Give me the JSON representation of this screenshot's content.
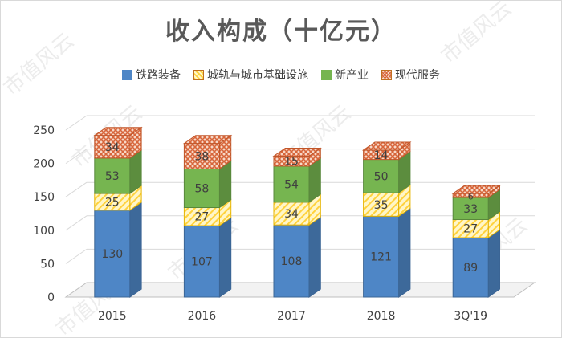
{
  "chart_data": {
    "type": "bar",
    "stacked": true,
    "three_d": true,
    "title": "收入构成（十亿元）",
    "categories": [
      "2015",
      "2016",
      "2017",
      "2018",
      "3Q'19"
    ],
    "series": [
      {
        "name": "铁路装备",
        "values": [
          130,
          107,
          108,
          121,
          89
        ],
        "color": "#4e86c6",
        "pattern": "solid"
      },
      {
        "name": "城轨与城市基础设施",
        "values": [
          25,
          27,
          34,
          35,
          27
        ],
        "color": "#ffd23c",
        "pattern": "diagonal"
      },
      {
        "name": "新产业",
        "values": [
          53,
          58,
          54,
          50,
          33
        ],
        "color": "#76b550",
        "pattern": "solid"
      },
      {
        "name": "现代服务",
        "values": [
          34,
          38,
          15,
          14,
          6
        ],
        "color": "#e0764a",
        "pattern": "crosshatch"
      }
    ],
    "y_ticks": [
      0,
      50,
      100,
      150,
      200,
      250
    ],
    "ylim": [
      0,
      250
    ],
    "grid": true,
    "legend_position": "top"
  },
  "watermark_text": "市值风云"
}
